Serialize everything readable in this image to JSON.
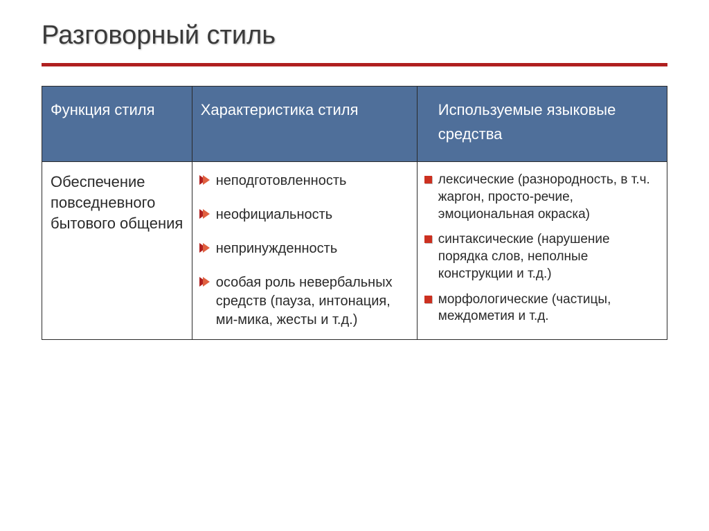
{
  "slide": {
    "title": "Разговорный стиль",
    "accent_color": "#b02020",
    "header_bg": "#4f6f9a",
    "header_fg": "#ffffff",
    "body_bg": "#ffffff",
    "body_fg": "#2a2a2a",
    "border_color": "#2a2a2a",
    "title_fontsize": 38,
    "header_fontsize": 22,
    "body_fontsize": 20,
    "col3_fontsize": 19,
    "columns": [
      "Функция стиля",
      "Характеристика стиля",
      "Используемые языковые средства"
    ],
    "col1_text": "Обеспечение повседневного бытового общения",
    "col2_items": [
      "неподготовленность",
      "неофициальность",
      "непринужденность",
      "особая роль невербальных средств (пауза, интонация, ми-мика, жесты и т.д.)"
    ],
    "col3_items": [
      "лексические (разнородность, в т.ч. жаргон, просто-речие, эмоциональная окраска)",
      "синтаксические (нарушение порядка слов, неполные конструкции и т.д.)",
      "морфологические (частицы, междометия и т.д."
    ]
  }
}
